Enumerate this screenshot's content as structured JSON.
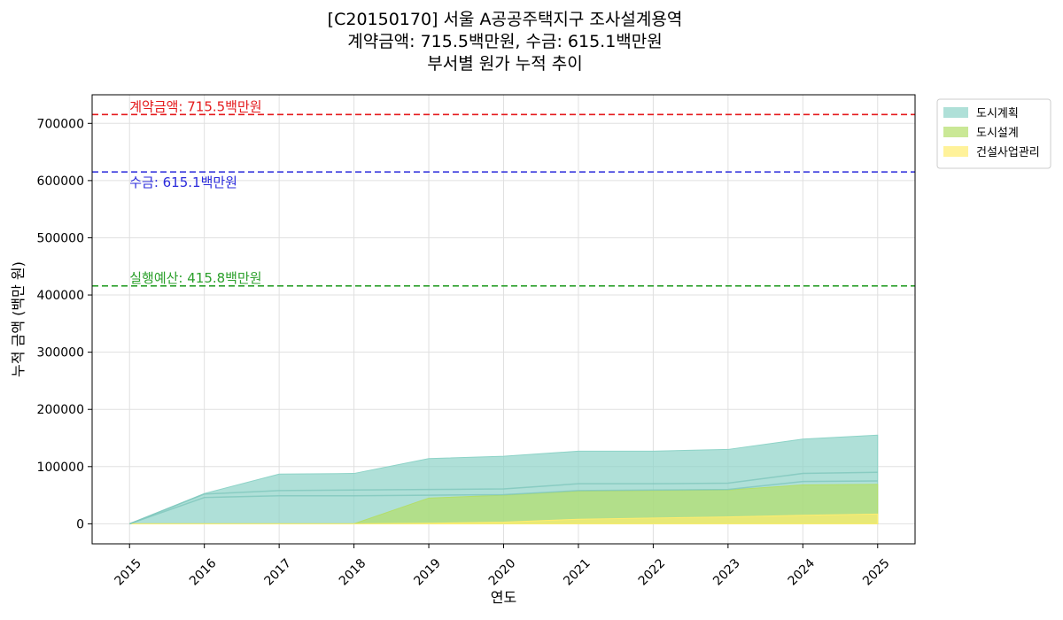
{
  "title": {
    "line1": "[C20150170] 서울 A공공주택지구 조사설계용역",
    "line2": "계약금액: 715.5백만원, 수금: 615.1백만원",
    "line3": "부서별 원가 누적 추이"
  },
  "chart_data": {
    "type": "area",
    "xlabel": "연도",
    "ylabel": "누적 금액 (백만 원)",
    "x": [
      2015,
      2016,
      2017,
      2018,
      2019,
      2020,
      2021,
      2022,
      2023,
      2024,
      2025
    ],
    "xlim": [
      2014.5,
      2025.5
    ],
    "ylim": [
      -35000,
      750000
    ],
    "yticks": [
      0,
      100000,
      200000,
      300000,
      400000,
      500000,
      600000,
      700000
    ],
    "grid": true,
    "legend_placement": "outside-top-right",
    "series": [
      {
        "name": "도시계획",
        "color": "#8dd3c7",
        "values": [
          0,
          53000,
          87000,
          88000,
          114000,
          118000,
          127000,
          127000,
          130000,
          148000,
          155000
        ],
        "line_values": [
          0,
          52000,
          58000,
          59000,
          60000,
          61000,
          70000,
          70000,
          71000,
          88000,
          90000
        ]
      },
      {
        "name": "도시설계",
        "color": "#b3de69",
        "values": [
          0,
          0,
          0,
          0,
          45000,
          50000,
          57000,
          58000,
          59000,
          68000,
          69000
        ],
        "line_values": [
          0,
          46000,
          49000,
          49000,
          50000,
          51000,
          58000,
          59000,
          60000,
          74000,
          75000
        ]
      },
      {
        "name": "건설사업관리",
        "color": "#ffed6f",
        "values": [
          0,
          0,
          0,
          0,
          1000,
          3000,
          8000,
          10000,
          12000,
          15000,
          17000
        ]
      }
    ],
    "reference_lines": [
      {
        "label": "계약금액: 715.5백만원",
        "value": 715500,
        "color": "#e41a1c"
      },
      {
        "label": "수금: 615.1백만원",
        "value": 615100,
        "color": "#2b2bdb"
      },
      {
        "label": "실행예산: 415.8백만원",
        "value": 415800,
        "color": "#2ca02c"
      }
    ]
  }
}
